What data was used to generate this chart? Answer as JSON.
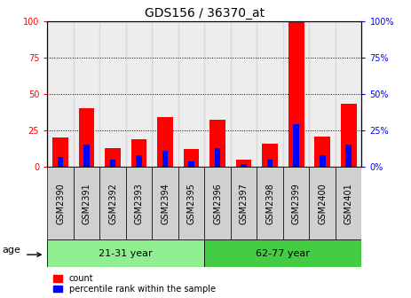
{
  "title": "GDS156 / 36370_at",
  "samples": [
    "GSM2390",
    "GSM2391",
    "GSM2392",
    "GSM2393",
    "GSM2394",
    "GSM2395",
    "GSM2396",
    "GSM2397",
    "GSM2398",
    "GSM2399",
    "GSM2400",
    "GSM2401"
  ],
  "red_values": [
    20,
    40,
    13,
    19,
    34,
    12,
    32,
    5,
    16,
    100,
    21,
    43
  ],
  "blue_values": [
    7,
    15,
    5,
    8,
    11,
    4,
    13,
    2,
    5,
    29,
    8,
    15
  ],
  "groups": [
    {
      "label": "21-31 year",
      "start": 0,
      "end": 6,
      "color": "#90EE90"
    },
    {
      "label": "62-77 year",
      "start": 6,
      "end": 12,
      "color": "#44CC44"
    }
  ],
  "ylim": [
    0,
    100
  ],
  "yticks": [
    0,
    25,
    50,
    75,
    100
  ],
  "left_axis_color": "red",
  "right_axis_color": "blue",
  "bar_width": 0.6,
  "legend_red": "count",
  "legend_blue": "percentile rank within the sample",
  "age_label": "age",
  "title_fontsize": 10,
  "tick_fontsize": 7,
  "label_fontsize": 7
}
